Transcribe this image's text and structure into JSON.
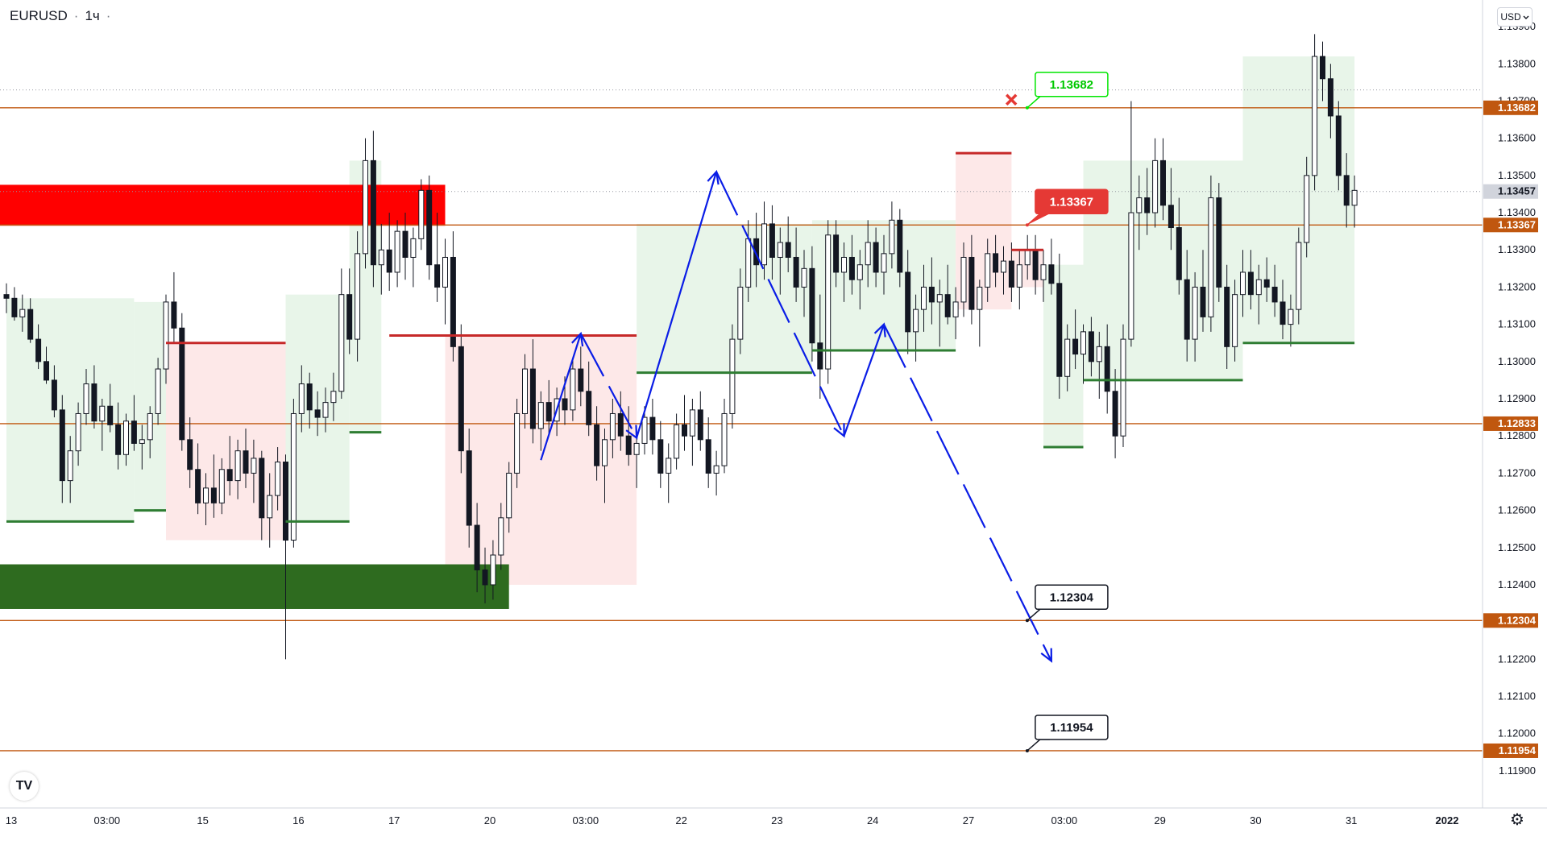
{
  "header": {
    "symbol": "EURUSD",
    "separator": "·",
    "interval": "1ч",
    "more": "·"
  },
  "currency": {
    "value": "USD",
    "icon": "chevron-down-icon"
  },
  "logo": {
    "text": "TV",
    "icon": "tradingview-logo-icon"
  },
  "settings": {
    "icon": "gear-icon"
  },
  "colors": {
    "up_candle": "#131722",
    "down_candle": "#131722",
    "supertrend_up": "#2e7d32",
    "supertrend_down": "#c62828",
    "fill_up": "#e8f5e9",
    "fill_down": "#fde8e8",
    "level_line": "#c0570f",
    "arrow": "#0a1de6",
    "supply_zone": "#ff0000",
    "demand_zone": "#2e6b1f",
    "current_price_tag": "#d1d4dc"
  },
  "chart_data": {
    "type": "candlestick",
    "symbol": "EURUSD",
    "interval": "1h",
    "y_axis": {
      "ylim": [
        1.1185,
        1.1395
      ],
      "ticks": [
        "1.13900",
        "1.13800",
        "1.13700",
        "1.13600",
        "1.13500",
        "1.13400",
        "1.13300",
        "1.13200",
        "1.13100",
        "1.13000",
        "1.12900",
        "1.12800",
        "1.12700",
        "1.12600",
        "1.12500",
        "1.12400",
        "1.12300",
        "1.12200",
        "1.12100",
        "1.12000",
        "1.11900"
      ]
    },
    "x_axis": {
      "labels": [
        "13",
        "03:00",
        "15",
        "16",
        "17",
        "20",
        "03:00",
        "22",
        "23",
        "24",
        "27",
        "03:00",
        "29",
        "30",
        "31",
        "2022"
      ],
      "label_index": [
        0,
        12,
        24,
        36,
        48,
        60,
        72,
        84,
        96,
        108,
        120,
        132,
        144,
        156,
        168,
        180
      ]
    },
    "grid": false,
    "current_price": "1.13457",
    "price_levels": [
      {
        "value": 1.13682,
        "label": "1.13682"
      },
      {
        "value": 1.13367,
        "label": "1.13367"
      },
      {
        "value": 1.12833,
        "label": "1.12833"
      },
      {
        "value": 1.12304,
        "label": "1.12304"
      },
      {
        "value": 1.11954,
        "label": "1.11954"
      }
    ],
    "callouts": [
      {
        "label": "1.13682",
        "value": 1.13682,
        "x": 131,
        "style": "green"
      },
      {
        "label": "1.13367",
        "value": 1.13367,
        "x": 131,
        "style": "red"
      },
      {
        "label": "1.12304",
        "value": 1.12304,
        "x": 131,
        "style": "black"
      },
      {
        "label": "1.11954",
        "value": 1.11954,
        "x": 131,
        "style": "black"
      }
    ],
    "cancel_marker": {
      "x": 128,
      "value": 1.13682,
      "icon": "close-x-icon"
    },
    "zones": [
      {
        "type": "supply",
        "x0": -1,
        "x1": 55,
        "y0": 1.13365,
        "y1": 1.13475
      },
      {
        "type": "demand",
        "x0": -1,
        "x1": 63,
        "y0": 1.12335,
        "y1": 1.12455
      }
    ],
    "projection_path": [
      [
        67,
        1.12735
      ],
      [
        72,
        1.13075
      ],
      [
        79,
        1.12795
      ],
      [
        89,
        1.1351
      ],
      [
        105,
        1.128
      ],
      [
        110,
        1.131
      ],
      [
        131,
        1.12195
      ]
    ],
    "candles_ohlc": [
      [
        1.1318,
        1.1321,
        1.1313,
        1.1317
      ],
      [
        1.1317,
        1.132,
        1.1311,
        1.1312
      ],
      [
        1.1312,
        1.1318,
        1.1308,
        1.1314
      ],
      [
        1.1314,
        1.1317,
        1.1305,
        1.1306
      ],
      [
        1.1306,
        1.131,
        1.1298,
        1.13
      ],
      [
        1.13,
        1.1304,
        1.1294,
        1.1295
      ],
      [
        1.1295,
        1.1299,
        1.1285,
        1.1287
      ],
      [
        1.1287,
        1.1291,
        1.1262,
        1.1268
      ],
      [
        1.1268,
        1.128,
        1.1262,
        1.1276
      ],
      [
        1.1276,
        1.1289,
        1.1272,
        1.1286
      ],
      [
        1.1286,
        1.1298,
        1.1283,
        1.1294
      ],
      [
        1.1294,
        1.1299,
        1.1282,
        1.1284
      ],
      [
        1.1284,
        1.129,
        1.1276,
        1.1288
      ],
      [
        1.1288,
        1.1294,
        1.1281,
        1.1283
      ],
      [
        1.1283,
        1.1289,
        1.1271,
        1.1275
      ],
      [
        1.1275,
        1.1286,
        1.1272,
        1.1284
      ],
      [
        1.1284,
        1.1291,
        1.1276,
        1.1278
      ],
      [
        1.1278,
        1.1283,
        1.1271,
        1.1279
      ],
      [
        1.1279,
        1.1288,
        1.1274,
        1.1286
      ],
      [
        1.1286,
        1.1301,
        1.1283,
        1.1298
      ],
      [
        1.1298,
        1.1318,
        1.1294,
        1.1316
      ],
      [
        1.1316,
        1.1324,
        1.1305,
        1.1309
      ],
      [
        1.1309,
        1.1313,
        1.1276,
        1.1279
      ],
      [
        1.1279,
        1.1285,
        1.1266,
        1.1271
      ],
      [
        1.1271,
        1.1278,
        1.1259,
        1.1262
      ],
      [
        1.1262,
        1.127,
        1.1256,
        1.1266
      ],
      [
        1.1266,
        1.1275,
        1.1258,
        1.1262
      ],
      [
        1.1262,
        1.1274,
        1.1259,
        1.1271
      ],
      [
        1.1271,
        1.128,
        1.1264,
        1.1268
      ],
      [
        1.1268,
        1.1279,
        1.1263,
        1.1276
      ],
      [
        1.1276,
        1.1282,
        1.1266,
        1.127
      ],
      [
        1.127,
        1.1279,
        1.1262,
        1.1274
      ],
      [
        1.1274,
        1.1276,
        1.1252,
        1.1258
      ],
      [
        1.1258,
        1.127,
        1.125,
        1.1264
      ],
      [
        1.1264,
        1.1277,
        1.126,
        1.1273
      ],
      [
        1.1273,
        1.1275,
        1.122,
        1.1252
      ],
      [
        1.1252,
        1.129,
        1.125,
        1.1286
      ],
      [
        1.1286,
        1.1299,
        1.1281,
        1.1294
      ],
      [
        1.1294,
        1.1297,
        1.1282,
        1.1287
      ],
      [
        1.1287,
        1.1292,
        1.128,
        1.1285
      ],
      [
        1.1285,
        1.1293,
        1.1281,
        1.1289
      ],
      [
        1.1289,
        1.1297,
        1.1284,
        1.1292
      ],
      [
        1.1292,
        1.1325,
        1.129,
        1.1318
      ],
      [
        1.1318,
        1.1325,
        1.1302,
        1.1306
      ],
      [
        1.1306,
        1.1335,
        1.13,
        1.1329
      ],
      [
        1.1329,
        1.136,
        1.1325,
        1.1354
      ],
      [
        1.1354,
        1.1362,
        1.132,
        1.1326
      ],
      [
        1.1326,
        1.1337,
        1.1318,
        1.133
      ],
      [
        1.133,
        1.134,
        1.1319,
        1.1324
      ],
      [
        1.1324,
        1.1338,
        1.132,
        1.1335
      ],
      [
        1.1335,
        1.134,
        1.1322,
        1.1328
      ],
      [
        1.1328,
        1.1336,
        1.132,
        1.1333
      ],
      [
        1.1333,
        1.1349,
        1.133,
        1.1346
      ],
      [
        1.1346,
        1.135,
        1.1322,
        1.1326
      ],
      [
        1.1326,
        1.134,
        1.1316,
        1.132
      ],
      [
        1.132,
        1.1333,
        1.131,
        1.1328
      ],
      [
        1.1328,
        1.1335,
        1.13,
        1.1304
      ],
      [
        1.1304,
        1.131,
        1.127,
        1.1276
      ],
      [
        1.1276,
        1.1282,
        1.125,
        1.1256
      ],
      [
        1.1256,
        1.1262,
        1.1238,
        1.1244
      ],
      [
        1.1244,
        1.125,
        1.1235,
        1.124
      ],
      [
        1.124,
        1.1252,
        1.1236,
        1.1248
      ],
      [
        1.1248,
        1.1262,
        1.1244,
        1.1258
      ],
      [
        1.1258,
        1.1273,
        1.1254,
        1.127
      ],
      [
        1.127,
        1.129,
        1.1266,
        1.1286
      ],
      [
        1.1286,
        1.1302,
        1.1282,
        1.1298
      ],
      [
        1.1298,
        1.1306,
        1.1278,
        1.1282
      ],
      [
        1.1282,
        1.1292,
        1.1276,
        1.1289
      ],
      [
        1.1289,
        1.1295,
        1.128,
        1.1284
      ],
      [
        1.1284,
        1.1293,
        1.128,
        1.129
      ],
      [
        1.129,
        1.1296,
        1.1283,
        1.1287
      ],
      [
        1.1287,
        1.1301,
        1.1284,
        1.1298
      ],
      [
        1.1298,
        1.1304,
        1.1288,
        1.1292
      ],
      [
        1.1292,
        1.13,
        1.128,
        1.1283
      ],
      [
        1.1283,
        1.1288,
        1.1268,
        1.1272
      ],
      [
        1.1272,
        1.1282,
        1.1262,
        1.1279
      ],
      [
        1.1279,
        1.129,
        1.1274,
        1.1286
      ],
      [
        1.1286,
        1.1292,
        1.1276,
        1.128
      ],
      [
        1.128,
        1.1288,
        1.1272,
        1.1275
      ],
      [
        1.1275,
        1.1282,
        1.1266,
        1.1278
      ],
      [
        1.1278,
        1.1288,
        1.1275,
        1.1285
      ],
      [
        1.1285,
        1.129,
        1.1275,
        1.1279
      ],
      [
        1.1279,
        1.1284,
        1.1266,
        1.127
      ],
      [
        1.127,
        1.1278,
        1.1262,
        1.1274
      ],
      [
        1.1274,
        1.1286,
        1.1271,
        1.1283
      ],
      [
        1.1283,
        1.1291,
        1.1276,
        1.128
      ],
      [
        1.128,
        1.129,
        1.1272,
        1.1287
      ],
      [
        1.1287,
        1.1292,
        1.1276,
        1.1279
      ],
      [
        1.1279,
        1.1285,
        1.1266,
        1.127
      ],
      [
        1.127,
        1.1276,
        1.1264,
        1.1272
      ],
      [
        1.1272,
        1.129,
        1.127,
        1.1286
      ],
      [
        1.1286,
        1.131,
        1.1282,
        1.1306
      ],
      [
        1.1306,
        1.1325,
        1.1302,
        1.132
      ],
      [
        1.132,
        1.1338,
        1.1316,
        1.1333
      ],
      [
        1.1333,
        1.134,
        1.132,
        1.1326
      ],
      [
        1.1326,
        1.1343,
        1.1322,
        1.1337
      ],
      [
        1.1337,
        1.1342,
        1.1322,
        1.1328
      ],
      [
        1.1328,
        1.1336,
        1.1318,
        1.1332
      ],
      [
        1.1332,
        1.1339,
        1.1324,
        1.1328
      ],
      [
        1.1328,
        1.1336,
        1.1316,
        1.132
      ],
      [
        1.132,
        1.133,
        1.1312,
        1.1325
      ],
      [
        1.1325,
        1.1331,
        1.13,
        1.1305
      ],
      [
        1.1305,
        1.1318,
        1.129,
        1.1298
      ],
      [
        1.1298,
        1.1338,
        1.1294,
        1.1334
      ],
      [
        1.1334,
        1.1338,
        1.132,
        1.1324
      ],
      [
        1.1324,
        1.1332,
        1.1316,
        1.1328
      ],
      [
        1.1328,
        1.1334,
        1.1318,
        1.1322
      ],
      [
        1.1322,
        1.133,
        1.1314,
        1.1326
      ],
      [
        1.1326,
        1.1338,
        1.132,
        1.1332
      ],
      [
        1.1332,
        1.1336,
        1.132,
        1.1324
      ],
      [
        1.1324,
        1.1334,
        1.1318,
        1.1329
      ],
      [
        1.1329,
        1.1343,
        1.1325,
        1.1338
      ],
      [
        1.1338,
        1.1341,
        1.132,
        1.1324
      ],
      [
        1.1324,
        1.133,
        1.1302,
        1.1308
      ],
      [
        1.1308,
        1.1318,
        1.13,
        1.1314
      ],
      [
        1.1314,
        1.1326,
        1.1308,
        1.132
      ],
      [
        1.132,
        1.1328,
        1.131,
        1.1316
      ],
      [
        1.1316,
        1.1322,
        1.1304,
        1.1318
      ],
      [
        1.1318,
        1.1326,
        1.131,
        1.1312
      ],
      [
        1.1312,
        1.132,
        1.1306,
        1.1316
      ],
      [
        1.1316,
        1.1332,
        1.1312,
        1.1328
      ],
      [
        1.1328,
        1.1334,
        1.131,
        1.1314
      ],
      [
        1.1314,
        1.1322,
        1.1304,
        1.132
      ],
      [
        1.132,
        1.1333,
        1.1316,
        1.1329
      ],
      [
        1.1329,
        1.1334,
        1.132,
        1.1324
      ],
      [
        1.1324,
        1.1331,
        1.1318,
        1.1327
      ],
      [
        1.1327,
        1.1332,
        1.1316,
        1.132
      ],
      [
        1.132,
        1.133,
        1.1314,
        1.1326
      ],
      [
        1.1326,
        1.1334,
        1.1322,
        1.133
      ],
      [
        1.133,
        1.1334,
        1.1318,
        1.1322
      ],
      [
        1.1322,
        1.133,
        1.1316,
        1.1326
      ],
      [
        1.1326,
        1.1333,
        1.1318,
        1.1321
      ],
      [
        1.1321,
        1.1329,
        1.129,
        1.1296
      ],
      [
        1.1296,
        1.131,
        1.1292,
        1.1306
      ],
      [
        1.1306,
        1.1314,
        1.1298,
        1.1302
      ],
      [
        1.1302,
        1.131,
        1.1294,
        1.1308
      ],
      [
        1.1308,
        1.1312,
        1.1296,
        1.13
      ],
      [
        1.13,
        1.1308,
        1.129,
        1.1304
      ],
      [
        1.1304,
        1.131,
        1.1286,
        1.1292
      ],
      [
        1.1292,
        1.1298,
        1.1274,
        1.128
      ],
      [
        1.128,
        1.131,
        1.1277,
        1.1306
      ],
      [
        1.1306,
        1.137,
        1.1304,
        1.134
      ],
      [
        1.134,
        1.135,
        1.133,
        1.1344
      ],
      [
        1.1344,
        1.1352,
        1.1334,
        1.134
      ],
      [
        1.134,
        1.136,
        1.1336,
        1.1354
      ],
      [
        1.1354,
        1.136,
        1.1338,
        1.1342
      ],
      [
        1.1342,
        1.1352,
        1.133,
        1.1336
      ],
      [
        1.1336,
        1.1344,
        1.1318,
        1.1322
      ],
      [
        1.1322,
        1.133,
        1.13,
        1.1306
      ],
      [
        1.1306,
        1.1324,
        1.13,
        1.132
      ],
      [
        1.132,
        1.133,
        1.1308,
        1.1312
      ],
      [
        1.1312,
        1.135,
        1.1308,
        1.1344
      ],
      [
        1.1344,
        1.1348,
        1.1316,
        1.132
      ],
      [
        1.132,
        1.1326,
        1.1298,
        1.1304
      ],
      [
        1.1304,
        1.1322,
        1.13,
        1.1318
      ],
      [
        1.1318,
        1.133,
        1.1312,
        1.1324
      ],
      [
        1.1324,
        1.133,
        1.1314,
        1.1318
      ],
      [
        1.1318,
        1.1326,
        1.131,
        1.1322
      ],
      [
        1.1322,
        1.1328,
        1.1316,
        1.132
      ],
      [
        1.132,
        1.1326,
        1.1312,
        1.1316
      ],
      [
        1.1316,
        1.1322,
        1.1306,
        1.131
      ],
      [
        1.131,
        1.1318,
        1.1304,
        1.1314
      ],
      [
        1.1314,
        1.1336,
        1.131,
        1.1332
      ],
      [
        1.1332,
        1.1355,
        1.1328,
        1.135
      ],
      [
        1.135,
        1.1388,
        1.1346,
        1.1382
      ],
      [
        1.1382,
        1.1386,
        1.137,
        1.1376
      ],
      [
        1.1376,
        1.138,
        1.136,
        1.1366
      ],
      [
        1.1366,
        1.137,
        1.1346,
        1.135
      ],
      [
        1.135,
        1.1356,
        1.1336,
        1.1342
      ],
      [
        1.1342,
        1.135,
        1.1336,
        1.1346
      ]
    ],
    "supertrend": [
      {
        "x0": 0,
        "x1": 16,
        "value": 1.1257,
        "direction": "up"
      },
      {
        "x0": 16,
        "x1": 20,
        "value": 1.126,
        "direction": "up"
      },
      {
        "x0": 20,
        "x1": 35,
        "value": 1.1305,
        "direction": "down"
      },
      {
        "x0": 35,
        "x1": 43,
        "value": 1.1257,
        "direction": "up"
      },
      {
        "x0": 43,
        "x1": 47,
        "value": 1.1281,
        "direction": "up"
      },
      {
        "x0": 48,
        "x1": 55,
        "value": 1.1307,
        "direction": "down"
      },
      {
        "x0": 55,
        "x1": 79,
        "value": 1.1307,
        "direction": "down"
      },
      {
        "x0": 79,
        "x1": 101,
        "value": 1.1297,
        "direction": "up"
      },
      {
        "x0": 101,
        "x1": 119,
        "value": 1.1303,
        "direction": "up"
      },
      {
        "x0": 119,
        "x1": 126,
        "value": 1.1356,
        "direction": "down"
      },
      {
        "x0": 126,
        "x1": 130,
        "value": 1.133,
        "direction": "down"
      },
      {
        "x0": 130,
        "x1": 135,
        "value": 1.1277,
        "direction": "up"
      },
      {
        "x0": 135,
        "x1": 155,
        "value": 1.1295,
        "direction": "up"
      },
      {
        "x0": 155,
        "x1": 181,
        "value": 1.1305,
        "direction": "up"
      }
    ]
  }
}
